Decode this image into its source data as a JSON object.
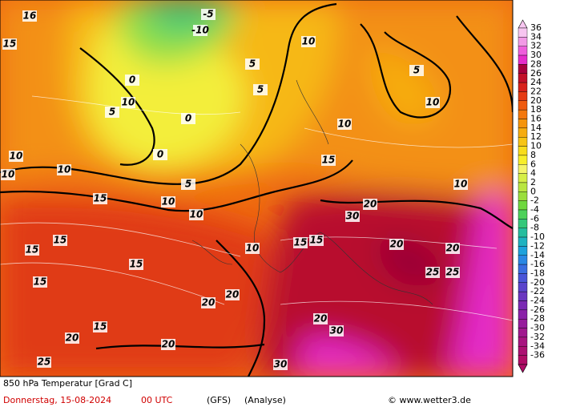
{
  "map": {
    "caption": "850 hPa Temperatur [Grad C]",
    "date": "Donnerstag, 15-08-2024",
    "time": "00 UTC",
    "model": "(GFS)",
    "run": "(Analyse)",
    "credit": "© www.wetter3.de",
    "contour_labels": [
      "16",
      "15",
      "10",
      "5",
      "0",
      "-5",
      "-10",
      "5",
      "5",
      "10",
      "10",
      "5",
      "10",
      "0",
      "0",
      "5",
      "10",
      "10",
      "10",
      "15",
      "10",
      "15",
      "15",
      "15",
      "15",
      "20",
      "20",
      "20",
      "20",
      "20",
      "20",
      "25",
      "25",
      "30",
      "30",
      "20",
      "15",
      "15",
      "25",
      "30",
      "10",
      "10",
      "15",
      "20",
      "15",
      "10"
    ]
  },
  "colorbar": {
    "ticks": [
      36,
      34,
      32,
      30,
      28,
      26,
      24,
      22,
      20,
      18,
      16,
      14,
      12,
      10,
      8,
      6,
      4,
      2,
      0,
      -2,
      -4,
      -6,
      -8,
      -10,
      -12,
      -14,
      -16,
      -18,
      -20,
      -22,
      -24,
      -26,
      -28,
      -30,
      -32,
      -34,
      -36
    ],
    "colors": [
      "#f7c6f0",
      "#f29ae6",
      "#ee5fdc",
      "#e52dcb",
      "#a8003e",
      "#c2102a",
      "#d8221c",
      "#e63b14",
      "#ef5a0e",
      "#f3780d",
      "#f5940c",
      "#f6ac10",
      "#f7c414",
      "#f8dc1c",
      "#f7ee2a",
      "#f4f46a",
      "#d6ef46",
      "#b9e640",
      "#9ade3c",
      "#6fd83e",
      "#4cd15a",
      "#34c87a",
      "#25bd9e",
      "#1fb2c0",
      "#1ea2dc",
      "#2a88e4",
      "#3a6ee0",
      "#4a55d8",
      "#5a44cc",
      "#6a36c0",
      "#7a2ab4",
      "#8a22a8",
      "#961c9c",
      "#a0188e",
      "#a81480",
      "#ac1072",
      "#b00c66"
    ]
  }
}
